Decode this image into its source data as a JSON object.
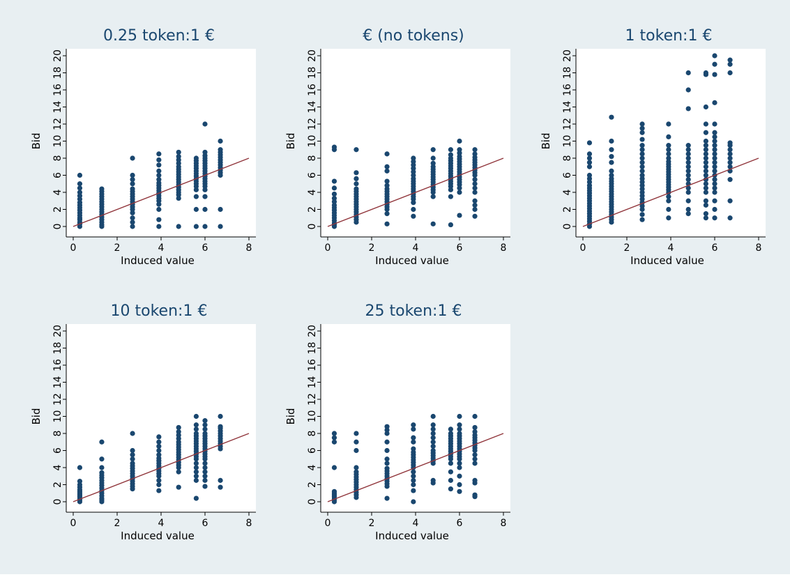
{
  "figure": {
    "background": "#e8eff2",
    "panel_background": "#ffffff",
    "point_color": "#1a476f",
    "line_color": "#90353b",
    "title_color": "#1a476f"
  },
  "chart_data": [
    {
      "type": "scatter",
      "title": "0.25 token:1 €",
      "xlabel": "Induced value",
      "ylabel": "Bid",
      "xlim": [
        0,
        8
      ],
      "ylim": [
        0,
        20
      ],
      "xticks": [
        "0",
        "2",
        "4",
        "6",
        "8"
      ],
      "yticks": [
        "0",
        "2",
        "4",
        "6",
        "8",
        "10",
        "12",
        "14",
        "16",
        "18",
        "20"
      ],
      "reference_line": [
        [
          0,
          0
        ],
        [
          8,
          8
        ]
      ],
      "columns": [
        {
          "x": 0.3,
          "bids": [
            0,
            0.3,
            0.5,
            0.8,
            1,
            1.3,
            1.6,
            1.9,
            2.2,
            2.5,
            2.8,
            3.2,
            3.6,
            4,
            4.5,
            5,
            6
          ]
        },
        {
          "x": 1.3,
          "bids": [
            0,
            0.2,
            0.5,
            0.8,
            1.1,
            1.4,
            1.7,
            2,
            2.3,
            2.6,
            2.9,
            3.2,
            3.5,
            3.8,
            4.1,
            4.4
          ]
        },
        {
          "x": 2.7,
          "bids": [
            0,
            0.5,
            1,
            1.6,
            2,
            2.3,
            2.6,
            2.9,
            3.2,
            3.5,
            3.8,
            4.1,
            4.4,
            5,
            5.5,
            6,
            8
          ]
        },
        {
          "x": 3.9,
          "bids": [
            0,
            0.8,
            2,
            2.6,
            3,
            3.3,
            3.6,
            3.9,
            4.2,
            4.5,
            4.8,
            5.1,
            5.5,
            6,
            6.5,
            7.2,
            7.8,
            8.5
          ]
        },
        {
          "x": 4.8,
          "bids": [
            0,
            3.3,
            3.7,
            4,
            4.3,
            4.6,
            4.9,
            5.2,
            5.5,
            5.8,
            6.1,
            6.4,
            6.7,
            7,
            7.4,
            7.8,
            8.2,
            8.7
          ]
        },
        {
          "x": 5.6,
          "bids": [
            0,
            2,
            3.5,
            4.3,
            4.7,
            5,
            5.3,
            5.6,
            5.9,
            6.2,
            6.5,
            6.8,
            7.1,
            7.4,
            7.7,
            8
          ]
        },
        {
          "x": 6.0,
          "bids": [
            0,
            2,
            3.5,
            4.3,
            4.7,
            5,
            5.3,
            5.6,
            5.9,
            6.2,
            6.5,
            6.8,
            7.1,
            7.4,
            7.7,
            8,
            8.3,
            8.7,
            12
          ]
        },
        {
          "x": 6.7,
          "bids": [
            0,
            2,
            6,
            6.3,
            6.6,
            6.9,
            7.2,
            7.5,
            7.8,
            8.1,
            8.4,
            8.7,
            9,
            10
          ]
        }
      ]
    },
    {
      "type": "scatter",
      "title": "€ (no tokens)",
      "xlabel": "Induced value",
      "ylabel": "Bid",
      "xlim": [
        0,
        8
      ],
      "ylim": [
        0,
        20
      ],
      "xticks": [
        "0",
        "2",
        "4",
        "6",
        "8"
      ],
      "yticks": [
        "0",
        "2",
        "4",
        "6",
        "8",
        "10",
        "12",
        "14",
        "16",
        "18",
        "20"
      ],
      "reference_line": [
        [
          0,
          0
        ],
        [
          8,
          8
        ]
      ],
      "columns": [
        {
          "x": 0.3,
          "bids": [
            0,
            0.2,
            0.4,
            0.7,
            1,
            1.3,
            1.6,
            1.9,
            2.2,
            2.5,
            2.9,
            3.3,
            3.8,
            4.5,
            5.3,
            9,
            9.3
          ]
        },
        {
          "x": 1.3,
          "bids": [
            0.5,
            0.8,
            1.1,
            1.4,
            1.7,
            2,
            2.3,
            2.6,
            2.9,
            3.2,
            3.5,
            3.8,
            4.1,
            4.4,
            5,
            5.6,
            6.3,
            9
          ]
        },
        {
          "x": 2.7,
          "bids": [
            0.3,
            1.5,
            2,
            2.3,
            2.6,
            2.9,
            3.2,
            3.5,
            3.8,
            4.1,
            4.4,
            4.8,
            5.3,
            6.5,
            7,
            8.5
          ]
        },
        {
          "x": 3.9,
          "bids": [
            1.2,
            2,
            2.8,
            3.2,
            3.5,
            3.8,
            4.1,
            4.4,
            4.7,
            5,
            5.3,
            5.6,
            6,
            6.4,
            6.8,
            7.2,
            7.6,
            8
          ]
        },
        {
          "x": 4.8,
          "bids": [
            0.3,
            3.5,
            4,
            4.3,
            4.6,
            4.9,
            5.2,
            5.5,
            5.8,
            6.1,
            6.4,
            6.7,
            7,
            7.4,
            8,
            9
          ]
        },
        {
          "x": 5.6,
          "bids": [
            0.2,
            3.5,
            4.3,
            4.7,
            5,
            5.3,
            5.6,
            5.9,
            6.2,
            6.5,
            6.8,
            7.1,
            7.4,
            7.7,
            8,
            8.4,
            9
          ]
        },
        {
          "x": 6.0,
          "bids": [
            1.3,
            4,
            4.5,
            4.9,
            5.2,
            5.5,
            5.8,
            6.1,
            6.4,
            6.7,
            7,
            7.3,
            7.6,
            7.9,
            8.2,
            8.6,
            9,
            10
          ]
        },
        {
          "x": 6.7,
          "bids": [
            1.2,
            2,
            2.5,
            3,
            4,
            4.5,
            5,
            5.5,
            6,
            6.3,
            6.6,
            6.9,
            7.2,
            7.5,
            7.8,
            8.1,
            8.5,
            9
          ]
        }
      ]
    },
    {
      "type": "scatter",
      "title": "1 token:1 €",
      "xlabel": "Induced value",
      "ylabel": "Bid",
      "xlim": [
        0,
        8
      ],
      "ylim": [
        0,
        20
      ],
      "xticks": [
        "0",
        "2",
        "4",
        "6",
        "8"
      ],
      "yticks": [
        "0",
        "2",
        "4",
        "6",
        "8",
        "10",
        "12",
        "14",
        "16",
        "18",
        "20"
      ],
      "reference_line": [
        [
          0,
          0
        ],
        [
          8,
          8
        ]
      ],
      "columns": [
        {
          "x": 0.3,
          "bids": [
            0,
            0.3,
            0.6,
            0.9,
            1.2,
            1.5,
            1.8,
            2.1,
            2.4,
            2.7,
            3,
            3.3,
            3.6,
            3.9,
            4.2,
            4.5,
            4.8,
            5.2,
            5.6,
            6,
            7,
            7.5,
            8,
            8.5,
            9.8
          ]
        },
        {
          "x": 1.3,
          "bids": [
            0.5,
            0.8,
            1.1,
            1.4,
            1.7,
            2,
            2.3,
            2.6,
            2.9,
            3.2,
            3.5,
            3.8,
            4.1,
            4.4,
            4.7,
            5,
            5.3,
            5.6,
            6,
            6.5,
            7.5,
            8.2,
            9,
            10,
            12.8
          ]
        },
        {
          "x": 2.7,
          "bids": [
            0.8,
            1.4,
            2,
            2.4,
            2.8,
            3.2,
            3.6,
            4,
            4.4,
            4.8,
            5.2,
            5.6,
            6,
            6.5,
            7,
            7.5,
            8,
            8.5,
            9,
            9.5,
            10.2,
            11,
            11.5,
            12
          ]
        },
        {
          "x": 3.9,
          "bids": [
            1,
            2,
            3,
            3.5,
            4,
            4.3,
            4.6,
            4.9,
            5.2,
            5.5,
            5.8,
            6.1,
            6.4,
            6.7,
            7,
            7.3,
            7.6,
            8,
            8.5,
            9,
            9.5,
            10.5,
            12
          ]
        },
        {
          "x": 4.8,
          "bids": [
            1.5,
            2,
            3,
            4,
            4.5,
            5,
            5.5,
            6,
            6.5,
            7,
            7.5,
            8,
            8.5,
            9,
            9.5,
            13.8,
            16,
            18
          ]
        },
        {
          "x": 5.6,
          "bids": [
            1,
            1.5,
            2.5,
            3,
            4,
            4.5,
            5,
            5.5,
            6,
            6.5,
            7,
            7.5,
            8,
            8.5,
            9,
            9.5,
            10,
            11,
            12,
            14,
            17.8,
            18
          ]
        },
        {
          "x": 6.0,
          "bids": [
            1,
            2,
            3,
            4,
            4.5,
            5,
            5.5,
            6,
            6.5,
            7,
            7.5,
            8,
            8.5,
            9,
            9.5,
            10,
            10.5,
            11,
            12,
            14.5,
            17.8,
            19,
            20
          ]
        },
        {
          "x": 6.7,
          "bids": [
            1,
            3,
            5.5,
            6.5,
            7,
            7.5,
            8,
            8.5,
            9,
            9.5,
            9.8,
            18,
            19,
            19.5
          ]
        }
      ]
    },
    {
      "type": "scatter",
      "title": "10 token:1 €",
      "xlabel": "Induced value",
      "ylabel": "Bid",
      "xlim": [
        0,
        8
      ],
      "ylim": [
        0,
        20
      ],
      "xticks": [
        "0",
        "2",
        "4",
        "6",
        "8"
      ],
      "yticks": [
        "0",
        "2",
        "4",
        "6",
        "8",
        "10",
        "12",
        "14",
        "16",
        "18",
        "20"
      ],
      "reference_line": [
        [
          0,
          0
        ],
        [
          8,
          8
        ]
      ],
      "columns": [
        {
          "x": 0.3,
          "bids": [
            0,
            0.2,
            0.4,
            0.6,
            0.8,
            1,
            1.2,
            1.4,
            1.7,
            2,
            2.4,
            4
          ]
        },
        {
          "x": 1.3,
          "bids": [
            0,
            0.2,
            0.4,
            0.7,
            1,
            1.3,
            1.6,
            1.9,
            2.2,
            2.5,
            2.8,
            3.1,
            3.4,
            4,
            5,
            7
          ]
        },
        {
          "x": 2.7,
          "bids": [
            1.5,
            1.8,
            2.1,
            2.4,
            2.7,
            3,
            3.3,
            3.6,
            3.9,
            4.2,
            4.5,
            5,
            5.5,
            6,
            8
          ]
        },
        {
          "x": 3.9,
          "bids": [
            1.3,
            2,
            2.5,
            3,
            3.3,
            3.6,
            3.9,
            4.2,
            4.5,
            4.8,
            5.1,
            5.5,
            6,
            6.5,
            7,
            7.6
          ]
        },
        {
          "x": 4.8,
          "bids": [
            1.7,
            3.5,
            4,
            4.3,
            4.6,
            4.9,
            5.2,
            5.5,
            5.8,
            6.1,
            6.4,
            6.7,
            7,
            7.4,
            7.8,
            8.2,
            8.7
          ]
        },
        {
          "x": 5.6,
          "bids": [
            0.4,
            2.5,
            3,
            3.5,
            4,
            4.5,
            5,
            5.3,
            5.6,
            5.9,
            6.2,
            6.5,
            6.8,
            7.1,
            7.4,
            7.7,
            8,
            8.5,
            9,
            10
          ]
        },
        {
          "x": 6.0,
          "bids": [
            1.8,
            2.5,
            3,
            3.5,
            4,
            4.5,
            5,
            5.3,
            5.6,
            5.9,
            6.2,
            6.5,
            6.8,
            7.1,
            7.4,
            7.7,
            8,
            8.5,
            9,
            9.5
          ]
        },
        {
          "x": 6.7,
          "bids": [
            1.7,
            2.5,
            6.2,
            6.5,
            6.8,
            7.1,
            7.4,
            7.7,
            8,
            8.3,
            8.6,
            8.8,
            10
          ]
        }
      ]
    },
    {
      "type": "scatter",
      "title": "25 token:1 €",
      "xlabel": "Induced value",
      "ylabel": "Bid",
      "xlim": [
        0,
        8
      ],
      "ylim": [
        0,
        20
      ],
      "xticks": [
        "0",
        "2",
        "4",
        "6",
        "8"
      ],
      "yticks": [
        "0",
        "2",
        "4",
        "6",
        "8",
        "10",
        "12",
        "14",
        "16",
        "18",
        "20"
      ],
      "reference_line": [
        [
          0,
          0
        ],
        [
          8,
          8
        ]
      ],
      "columns": [
        {
          "x": 0.3,
          "bids": [
            0,
            0.2,
            0.4,
            0.6,
            0.8,
            1,
            1.2,
            4,
            7,
            7.5,
            8
          ]
        },
        {
          "x": 1.3,
          "bids": [
            0.5,
            0.8,
            1.1,
            1.4,
            1.7,
            2,
            2.3,
            2.6,
            2.9,
            3.2,
            3.5,
            4,
            6,
            7,
            8
          ]
        },
        {
          "x": 2.7,
          "bids": [
            0.4,
            1.8,
            2.1,
            2.4,
            2.7,
            3,
            3.3,
            3.6,
            3.9,
            4.5,
            5,
            6,
            7,
            8,
            8.4,
            8.8
          ]
        },
        {
          "x": 3.9,
          "bids": [
            0,
            1.3,
            2,
            2.5,
            3,
            3.5,
            4,
            4.3,
            4.6,
            4.9,
            5.2,
            5.5,
            5.8,
            6.2,
            7,
            7.5,
            8.5,
            9
          ]
        },
        {
          "x": 4.8,
          "bids": [
            2.2,
            2.5,
            4.5,
            4.8,
            5.1,
            5.4,
            5.7,
            6,
            6.5,
            7,
            7.5,
            8,
            8.5,
            9,
            10
          ]
        },
        {
          "x": 5.6,
          "bids": [
            1.5,
            2.5,
            3.5,
            4.5,
            5,
            5.3,
            5.6,
            5.9,
            6.2,
            6.5,
            6.8,
            7.1,
            7.4,
            7.7,
            8,
            8.5
          ]
        },
        {
          "x": 6.0,
          "bids": [
            1.2,
            2,
            3,
            4,
            4.5,
            5,
            5.3,
            5.6,
            5.9,
            6.2,
            6.5,
            6.8,
            7.1,
            7.4,
            7.7,
            8,
            8.5,
            9,
            10
          ]
        },
        {
          "x": 6.7,
          "bids": [
            0.6,
            0.8,
            2.2,
            2.5,
            4.5,
            5,
            5.5,
            6,
            6.3,
            6.6,
            6.9,
            7.2,
            7.5,
            7.8,
            8.2,
            8.7,
            10
          ]
        }
      ]
    }
  ]
}
